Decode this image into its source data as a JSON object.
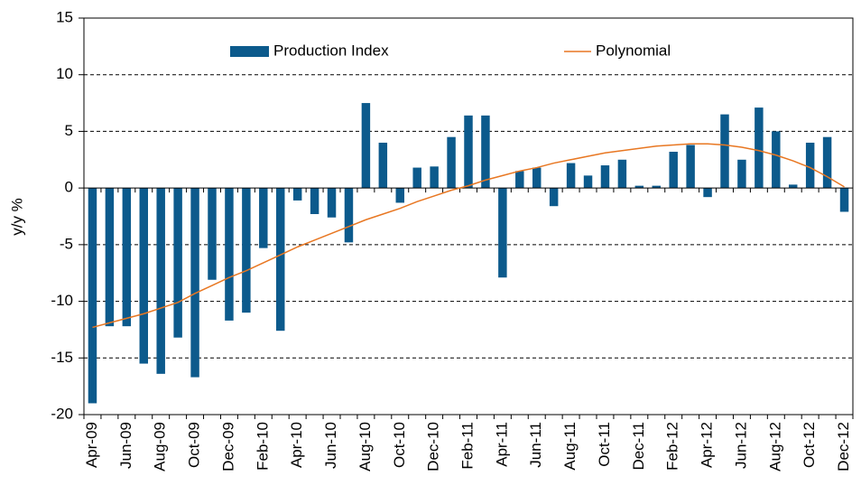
{
  "chart_data": {
    "type": "bar",
    "y_label": "y/y %",
    "categories": [
      "Apr-09",
      null,
      "Jun-09",
      null,
      "Aug-09",
      null,
      "Oct-09",
      null,
      "Dec-09",
      null,
      "Feb-10",
      null,
      "Apr-10",
      null,
      "Jun-10",
      null,
      "Aug-10",
      null,
      "Oct-10",
      null,
      "Dec-10",
      null,
      "Feb-11",
      null,
      "Apr-11",
      null,
      "Jun-11",
      null,
      "Aug-11",
      null,
      "Oct-11",
      null,
      "Dec-11",
      null,
      "Feb-12",
      null,
      "Apr-12",
      null,
      "Jun-12",
      null,
      "Aug-12",
      null,
      "Oct-12",
      null,
      "Dec-12"
    ],
    "series": [
      {
        "name": "Production Index",
        "type": "bar",
        "color": "#0c5a8c",
        "values": [
          -19,
          -12.2,
          -12.2,
          -15.5,
          -16.4,
          -13.2,
          -16.7,
          -8.1,
          -11.7,
          -11,
          -5.3,
          -12.6,
          -1.1,
          -2.3,
          -2.6,
          -4.8,
          7.5,
          4,
          -1.3,
          1.8,
          1.9,
          4.5,
          6.4,
          6.4,
          -7.9,
          1.5,
          1.8,
          -1.6,
          2.2,
          1.1,
          2.0,
          2.5,
          0.2,
          0.2,
          3.2,
          3.8,
          -0.8,
          6.5,
          2.5,
          7.1,
          5.0,
          0.3,
          4.0,
          4.5,
          -2.1
        ]
      },
      {
        "name": "Polynomial",
        "type": "line",
        "color": "#e87722",
        "values": [
          -12.3,
          -11.9,
          -11.5,
          -11.1,
          -10.6,
          -10.1,
          -9.3,
          -8.6,
          -7.9,
          -7.3,
          -6.6,
          -5.9,
          -5.2,
          -4.6,
          -4.0,
          -3.4,
          -2.8,
          -2.3,
          -1.8,
          -1.2,
          -0.7,
          -0.2,
          0.2,
          0.7,
          1.1,
          1.5,
          1.8,
          2.2,
          2.5,
          2.8,
          3.1,
          3.3,
          3.5,
          3.7,
          3.8,
          3.9,
          3.9,
          3.8,
          3.6,
          3.3,
          2.9,
          2.4,
          1.8,
          1.0,
          0.1
        ]
      }
    ],
    "ylim": [
      -20,
      15
    ],
    "yticks": [
      -20,
      -15,
      -10,
      -5,
      0,
      5,
      10,
      15
    ],
    "grid": true,
    "legend": "top"
  }
}
